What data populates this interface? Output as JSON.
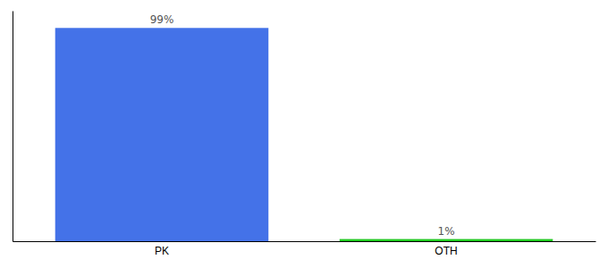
{
  "chart_data": {
    "type": "bar",
    "categories": [
      "PK",
      "OTH"
    ],
    "values": [
      99,
      1
    ],
    "value_labels": [
      "99%",
      "1%"
    ],
    "colors": [
      "#4472e8",
      "#22cc22"
    ],
    "ylim": [
      0,
      107
    ],
    "data_labels": true,
    "tick_labels": "x",
    "grid": false
  }
}
